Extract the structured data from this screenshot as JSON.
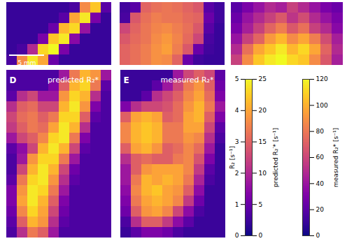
{
  "chart_data": {
    "type": "heatmap",
    "panels": [
      {
        "colorbar": 1,
        "scale_bar": "5 mm",
        "cells": [
          [
            2,
            2,
            2,
            2,
            2,
            2,
            3,
            18,
            22,
            4
          ],
          [
            2,
            2,
            2,
            2,
            2,
            4,
            20,
            24,
            6,
            2
          ],
          [
            2,
            2,
            2,
            2,
            5,
            21,
            23,
            8,
            2,
            2
          ],
          [
            2,
            2,
            2,
            6,
            22,
            24,
            7,
            2,
            2,
            2
          ],
          [
            2,
            3,
            10,
            23,
            25,
            6,
            2,
            2,
            2,
            2
          ],
          [
            3,
            18,
            24,
            20,
            5,
            2,
            2,
            2,
            2,
            2
          ]
        ]
      },
      {
        "colorbar": 0,
        "cells": [
          [
            0.5,
            0.8,
            3,
            3.2,
            3.3,
            3.2,
            3.0,
            2.8,
            0.8,
            0.5
          ],
          [
            0.6,
            2.8,
            3.2,
            3.4,
            3.3,
            3.3,
            3.1,
            3.0,
            1,
            0.5
          ],
          [
            2.5,
            3,
            3.3,
            3.5,
            3.6,
            3.4,
            3.2,
            2.8,
            0.8,
            0.4
          ],
          [
            2.8,
            3.1,
            3.3,
            3.6,
            3.8,
            3.5,
            3.1,
            2.5,
            0.6,
            0.4
          ],
          [
            3,
            3.2,
            3.4,
            3.7,
            3.9,
            3.4,
            2.8,
            1.0,
            0.5,
            0.4
          ],
          [
            3,
            3.2,
            3.4,
            3.7,
            3.6,
            3.0,
            1.0,
            0.5,
            0.4,
            0.4
          ]
        ]
      },
      {
        "colorbar": 1,
        "cells": [
          [
            4,
            6,
            8,
            10,
            9,
            12,
            10,
            8,
            6,
            5
          ],
          [
            5,
            8,
            10,
            12,
            14,
            11,
            13,
            10,
            8,
            6
          ],
          [
            6,
            9,
            12,
            15,
            17,
            14,
            16,
            12,
            10,
            7
          ],
          [
            8,
            12,
            15,
            19,
            21,
            18,
            20,
            17,
            13,
            9
          ],
          [
            10,
            16,
            20,
            22,
            24,
            21,
            23,
            20,
            15,
            10
          ],
          [
            12,
            18,
            22,
            24,
            25,
            23,
            22,
            18,
            14,
            9
          ]
        ]
      },
      {
        "label": "D",
        "title": "predicted R₂*",
        "colorbar": 2,
        "cells": [
          [
            15,
            15,
            15,
            15,
            15,
            40,
            80,
            100,
            90,
            40
          ],
          [
            15,
            15,
            15,
            15,
            30,
            70,
            100,
            110,
            80,
            20
          ],
          [
            20,
            50,
            60,
            40,
            40,
            90,
            110,
            100,
            50,
            15
          ],
          [
            50,
            70,
            75,
            60,
            60,
            100,
            115,
            90,
            30,
            15
          ],
          [
            60,
            75,
            80,
            70,
            80,
            110,
            110,
            70,
            20,
            15
          ],
          [
            55,
            70,
            80,
            75,
            95,
            115,
            100,
            50,
            15,
            15
          ],
          [
            40,
            60,
            70,
            85,
            110,
            115,
            80,
            30,
            15,
            15
          ],
          [
            20,
            35,
            60,
            100,
            115,
            100,
            60,
            20,
            15,
            15
          ],
          [
            15,
            40,
            90,
            110,
            110,
            80,
            40,
            15,
            15,
            15
          ],
          [
            15,
            60,
            100,
            115,
            100,
            60,
            25,
            15,
            15,
            15
          ],
          [
            20,
            80,
            110,
            115,
            90,
            50,
            20,
            15,
            15,
            15
          ],
          [
            30,
            90,
            115,
            110,
            80,
            40,
            15,
            15,
            15,
            15
          ],
          [
            30,
            95,
            115,
            100,
            70,
            30,
            15,
            15,
            15,
            15
          ],
          [
            25,
            85,
            110,
            95,
            60,
            25,
            15,
            15,
            15,
            15
          ],
          [
            20,
            70,
            100,
            90,
            50,
            20,
            15,
            15,
            15,
            15
          ],
          [
            15,
            50,
            80,
            70,
            40,
            15,
            15,
            15,
            15,
            15
          ]
        ]
      },
      {
        "label": "E",
        "title": "measured R₂*",
        "colorbar": 2,
        "cells": [
          [
            10,
            10,
            10,
            10,
            10,
            40,
            60,
            70,
            60,
            20
          ],
          [
            10,
            10,
            10,
            20,
            40,
            60,
            80,
            90,
            70,
            25
          ],
          [
            10,
            10,
            20,
            50,
            60,
            70,
            85,
            95,
            75,
            30
          ],
          [
            30,
            50,
            60,
            60,
            65,
            75,
            90,
            100,
            80,
            40
          ],
          [
            70,
            95,
            100,
            95,
            70,
            75,
            95,
            100,
            70,
            30
          ],
          [
            85,
            100,
            105,
            100,
            80,
            80,
            95,
            95,
            60,
            20
          ],
          [
            85,
            100,
            105,
            100,
            80,
            80,
            90,
            85,
            50,
            15
          ],
          [
            70,
            95,
            100,
            90,
            70,
            75,
            85,
            75,
            40,
            10
          ],
          [
            50,
            70,
            75,
            70,
            70,
            80,
            85,
            65,
            30,
            10
          ],
          [
            40,
            70,
            90,
            95,
            95,
            95,
            85,
            55,
            20,
            10
          ],
          [
            40,
            80,
            100,
            95,
            100,
            95,
            80,
            45,
            15,
            10
          ],
          [
            35,
            85,
            100,
            105,
            95,
            90,
            70,
            35,
            10,
            10
          ],
          [
            30,
            80,
            95,
            100,
            95,
            85,
            55,
            25,
            10,
            10
          ],
          [
            25,
            70,
            90,
            95,
            85,
            60,
            35,
            15,
            10,
            10
          ],
          [
            15,
            50,
            70,
            70,
            55,
            35,
            20,
            10,
            10,
            10
          ],
          [
            10,
            20,
            30,
            30,
            25,
            15,
            10,
            10,
            10,
            10
          ]
        ]
      }
    ],
    "colorbars": [
      {
        "label": "R₂ [s⁻¹]",
        "range": [
          0,
          5
        ],
        "ticks": [
          0,
          1,
          2,
          3,
          4,
          5
        ]
      },
      {
        "label": "predicted R₂′* [s⁻¹]",
        "range": [
          0,
          25
        ],
        "ticks": [
          0,
          5,
          10,
          15,
          20,
          25
        ]
      },
      {
        "label": "measured R₂* [s⁻¹]",
        "range": [
          0,
          120
        ],
        "ticks": [
          0,
          20,
          40,
          60,
          80,
          100,
          120
        ]
      }
    ]
  }
}
